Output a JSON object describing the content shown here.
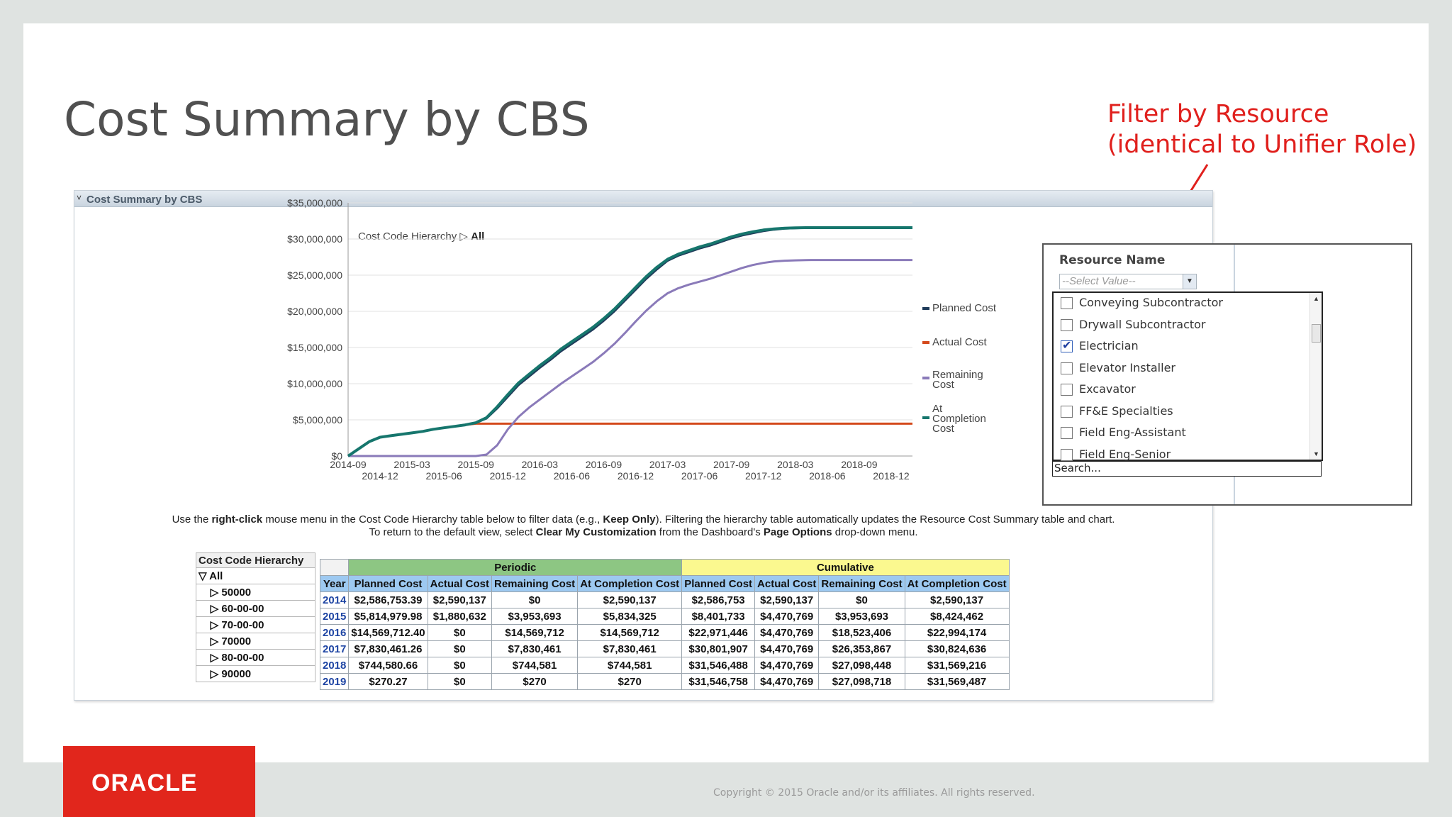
{
  "slide": {
    "title": "Cost Summary by CBS",
    "callout_line1": "Filter by Resource",
    "callout_line2": "(identical to Unifier Role)",
    "copyright": "Copyright © 2015 Oracle and/or its affiliates. All rights reserved.",
    "logo_text": "ORACLE"
  },
  "panel": {
    "title": "Cost Summary by CBS",
    "hierarchy_caption": "Cost Code Hierarchy",
    "hierarchy_sep": "▷",
    "hierarchy_current": "All"
  },
  "chart_data": {
    "type": "line",
    "y_ticks": [
      "$35,000,000",
      "$30,000,000",
      "$25,000,000",
      "$20,000,000",
      "$15,000,000",
      "$10,000,000",
      "$5,000,000",
      "$0"
    ],
    "ylim": [
      0,
      35000000
    ],
    "x_ticks_top": [
      "2014-09",
      "2015-03",
      "2015-09",
      "2016-03",
      "2016-09",
      "2017-03",
      "2017-09",
      "2018-03",
      "2018-09"
    ],
    "x_ticks_bottom": [
      "2014-12",
      "2015-06",
      "2015-12",
      "2016-06",
      "2016-12",
      "2017-06",
      "2017-12",
      "2018-06",
      "2018-12"
    ],
    "x_months": [
      "2014-09",
      "2014-10",
      "2014-11",
      "2014-12",
      "2015-01",
      "2015-02",
      "2015-03",
      "2015-04",
      "2015-05",
      "2015-06",
      "2015-07",
      "2015-08",
      "2015-09",
      "2015-10",
      "2015-11",
      "2015-12",
      "2016-01",
      "2016-02",
      "2016-03",
      "2016-04",
      "2016-05",
      "2016-06",
      "2016-07",
      "2016-08",
      "2016-09",
      "2016-10",
      "2016-11",
      "2016-12",
      "2017-01",
      "2017-02",
      "2017-03",
      "2017-04",
      "2017-05",
      "2017-06",
      "2017-07",
      "2017-08",
      "2017-09",
      "2017-10",
      "2017-11",
      "2017-12",
      "2018-01",
      "2018-02",
      "2018-03",
      "2018-04",
      "2018-05",
      "2018-06",
      "2018-07",
      "2018-08",
      "2018-09",
      "2018-10",
      "2018-11",
      "2018-12",
      "2019-01",
      "2019-02"
    ],
    "series": [
      {
        "name": "Planned Cost",
        "color": "#1f3b5a",
        "values": [
          0,
          1000000,
          2000000,
          2600000,
          2800000,
          3000000,
          3200000,
          3400000,
          3700000,
          3900000,
          4100000,
          4300000,
          4600000,
          5200000,
          6600000,
          8200000,
          9800000,
          11000000,
          12200000,
          13300000,
          14500000,
          15500000,
          16500000,
          17500000,
          18700000,
          20000000,
          21500000,
          23000000,
          24500000,
          25800000,
          27000000,
          27700000,
          28200000,
          28700000,
          29100000,
          29600000,
          30100000,
          30500000,
          30800000,
          31100000,
          31300000,
          31450000,
          31500000,
          31540000,
          31546000,
          31546000,
          31546000,
          31546000,
          31546000,
          31546000,
          31546000,
          31546000,
          31546000,
          31546000
        ]
      },
      {
        "name": "Actual Cost",
        "color": "#d44a1c",
        "values": [
          0,
          1000000,
          2000000,
          2600000,
          2800000,
          3000000,
          3200000,
          3400000,
          3700000,
          3900000,
          4100000,
          4300000,
          4470769,
          4470769,
          4470769,
          4470769,
          4470769,
          4470769,
          4470769,
          4470769,
          4470769,
          4470769,
          4470769,
          4470769,
          4470769,
          4470769,
          4470769,
          4470769,
          4470769,
          4470769,
          4470769,
          4470769,
          4470769,
          4470769,
          4470769,
          4470769,
          4470769,
          4470769,
          4470769,
          4470769,
          4470769,
          4470769,
          4470769,
          4470769,
          4470769,
          4470769,
          4470769,
          4470769,
          4470769,
          4470769,
          4470769,
          4470769,
          4470769,
          4470769
        ]
      },
      {
        "name": "Remaining Cost",
        "color": "#8a7ab9",
        "values": [
          0,
          0,
          0,
          0,
          0,
          0,
          0,
          0,
          0,
          0,
          0,
          0,
          0,
          200000,
          1500000,
          3700000,
          5400000,
          6700000,
          7800000,
          8900000,
          10000000,
          11000000,
          12000000,
          13000000,
          14200000,
          15500000,
          17000000,
          18600000,
          20100000,
          21400000,
          22500000,
          23200000,
          23700000,
          24100000,
          24500000,
          25000000,
          25500000,
          26000000,
          26400000,
          26700000,
          26900000,
          27000000,
          27050000,
          27090000,
          27098000,
          27098000,
          27098000,
          27098000,
          27098000,
          27098000,
          27098000,
          27098000,
          27098000,
          27098000
        ]
      },
      {
        "name": "At Completion Cost",
        "color": "#16766d",
        "values": [
          0,
          1000000,
          2000000,
          2600000,
          2800000,
          3000000,
          3200000,
          3400000,
          3700000,
          3900000,
          4100000,
          4300000,
          4600000,
          5300000,
          6800000,
          8500000,
          10100000,
          11300000,
          12500000,
          13600000,
          14800000,
          15800000,
          16800000,
          17800000,
          19000000,
          20300000,
          21800000,
          23300000,
          24800000,
          26100000,
          27200000,
          27900000,
          28400000,
          28900000,
          29300000,
          29800000,
          30300000,
          30700000,
          31000000,
          31250000,
          31400000,
          31500000,
          31550000,
          31569000,
          31569000,
          31569000,
          31569000,
          31569000,
          31569000,
          31569000,
          31569000,
          31569000,
          31569000,
          31569000
        ]
      }
    ],
    "legend_labels": [
      "Planned Cost",
      "Actual Cost",
      "Remaining",
      "Cost",
      "At",
      "Completion",
      "Cost"
    ]
  },
  "instructions": {
    "line1_a": "Use the ",
    "line1_b": "right-click",
    "line1_c": " mouse menu in the Cost Code Hierarchy table below to filter data (e.g., ",
    "line1_d": "Keep Only",
    "line1_e": "). Filtering the hierarchy table automatically updates the Resource Cost Summary table and chart.",
    "line2_a": "To return to the default view, select ",
    "line2_b": "Clear My Customization",
    "line2_c": " from the Dashboard's ",
    "line2_d": "Page Options",
    "line2_e": " drop-down menu."
  },
  "hierarchy_table": {
    "header": "Cost Code Hierarchy",
    "root": "All",
    "root_icon": "▽",
    "child_icon": "▷",
    "children": [
      "50000",
      "60-00-00",
      "70-00-00",
      "70000",
      "80-00-00",
      "90000"
    ]
  },
  "summary_table": {
    "group_periodic": "Periodic",
    "group_cumulative": "Cumulative",
    "columns": [
      "Year",
      "Planned Cost",
      "Actual Cost",
      "Remaining Cost",
      "At Completion Cost",
      "Planned Cost",
      "Actual Cost",
      "Remaining Cost",
      "At Completion Cost"
    ],
    "rows": [
      [
        "2014",
        "$2,586,753.39",
        "$2,590,137",
        "$0",
        "$2,590,137",
        "$2,586,753",
        "$2,590,137",
        "$0",
        "$2,590,137"
      ],
      [
        "2015",
        "$5,814,979.98",
        "$1,880,632",
        "$3,953,693",
        "$5,834,325",
        "$8,401,733",
        "$4,470,769",
        "$3,953,693",
        "$8,424,462"
      ],
      [
        "2016",
        "$14,569,712.40",
        "$0",
        "$14,569,712",
        "$14,569,712",
        "$22,971,446",
        "$4,470,769",
        "$18,523,406",
        "$22,994,174"
      ],
      [
        "2017",
        "$7,830,461.26",
        "$0",
        "$7,830,461",
        "$7,830,461",
        "$30,801,907",
        "$4,470,769",
        "$26,353,867",
        "$30,824,636"
      ],
      [
        "2018",
        "$744,580.66",
        "$0",
        "$744,581",
        "$744,581",
        "$31,546,488",
        "$4,470,769",
        "$27,098,448",
        "$31,569,216"
      ],
      [
        "2019",
        "$270.27",
        "$0",
        "$270",
        "$270",
        "$31,546,758",
        "$4,470,769",
        "$27,098,718",
        "$31,569,487"
      ]
    ]
  },
  "resource_filter": {
    "label": "Resource Name",
    "select_placeholder": "--Select Value--",
    "search_placeholder": "Search...",
    "items": [
      {
        "label": "Conveying Subcontractor",
        "checked": false
      },
      {
        "label": "Drywall Subcontractor",
        "checked": false
      },
      {
        "label": "Electrician",
        "checked": true
      },
      {
        "label": "Elevator Installer",
        "checked": false
      },
      {
        "label": "Excavator",
        "checked": false
      },
      {
        "label": "FF&E Specialties",
        "checked": false
      },
      {
        "label": "Field Eng-Assistant",
        "checked": false
      },
      {
        "label": "Field Eng-Senior",
        "checked": false
      }
    ]
  }
}
